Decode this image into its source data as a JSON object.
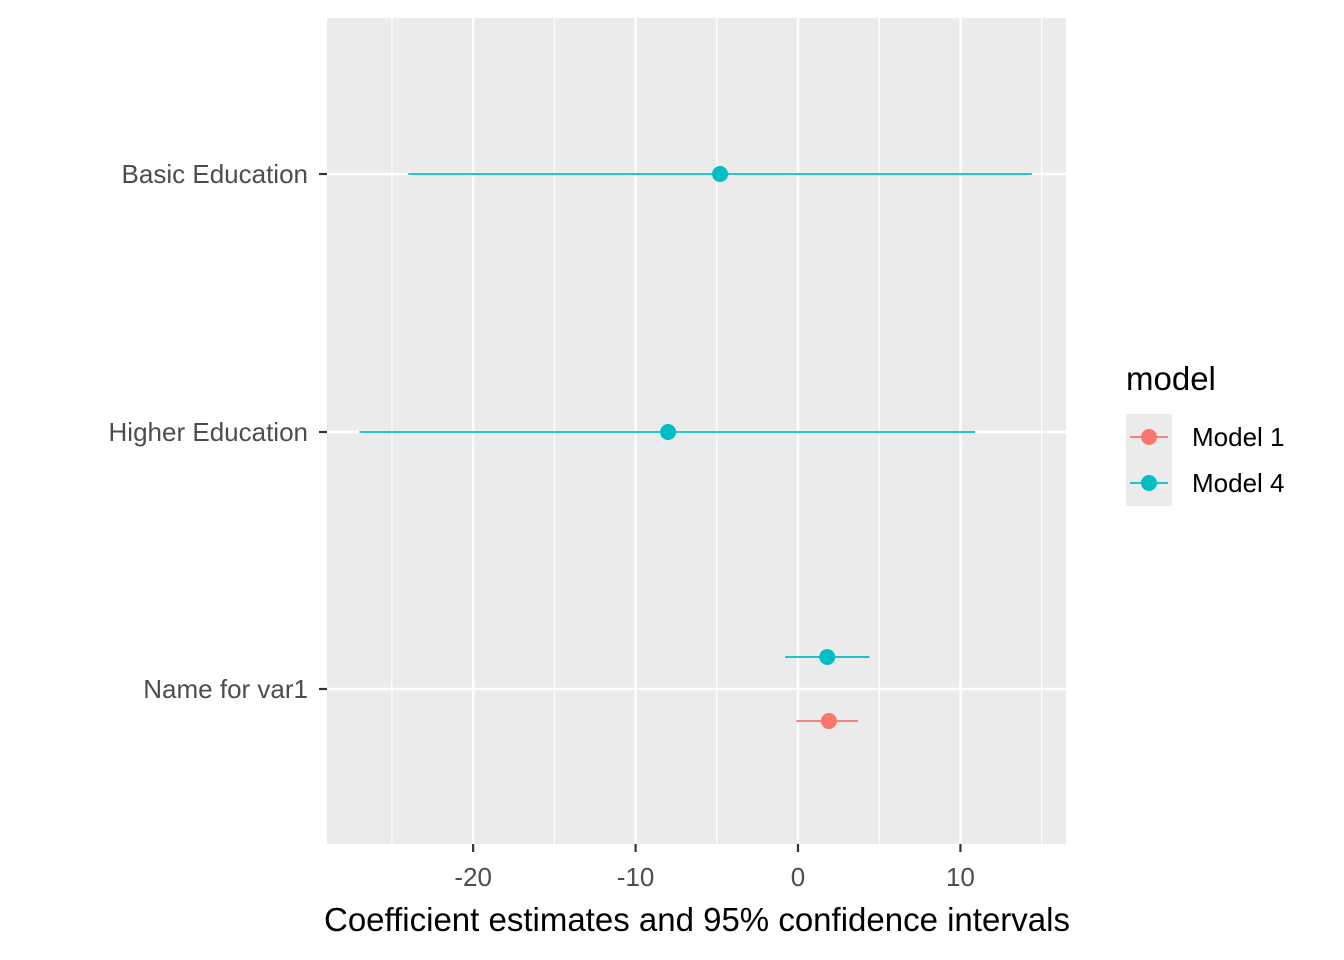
{
  "chart_data": {
    "type": "scatter",
    "subtype": "coefficient-plot",
    "xlabel": "Coefficient estimates and 95% confidence intervals",
    "ylabel": "",
    "xlim": [
      -29,
      16.5
    ],
    "x_ticks": [
      -20,
      -10,
      0,
      10
    ],
    "x_tick_labels": [
      "-20",
      "-10",
      "0",
      "10"
    ],
    "categories": [
      "Basic Education",
      "Higher Education",
      "Name for var1"
    ],
    "legend": {
      "title": "model",
      "position": "right",
      "entries": [
        "Model 1",
        "Model 4"
      ]
    },
    "series": [
      {
        "name": "Model 1",
        "color": "#F8766D",
        "points": [
          {
            "category": "Name for var1",
            "estimate": 1.9,
            "ci_low": -0.1,
            "ci_high": 3.7
          }
        ]
      },
      {
        "name": "Model 4",
        "color": "#00BFC4",
        "points": [
          {
            "category": "Basic Education",
            "estimate": -4.8,
            "ci_low": -24.0,
            "ci_high": 14.4
          },
          {
            "category": "Higher Education",
            "estimate": -8.0,
            "ci_low": -27.0,
            "ci_high": 10.9
          },
          {
            "category": "Name for var1",
            "estimate": 1.8,
            "ci_low": -0.8,
            "ci_high": 4.4
          }
        ]
      }
    ],
    "grid": true,
    "panel_background": "#EBEBEB",
    "grid_color": "#FFFFFF"
  }
}
